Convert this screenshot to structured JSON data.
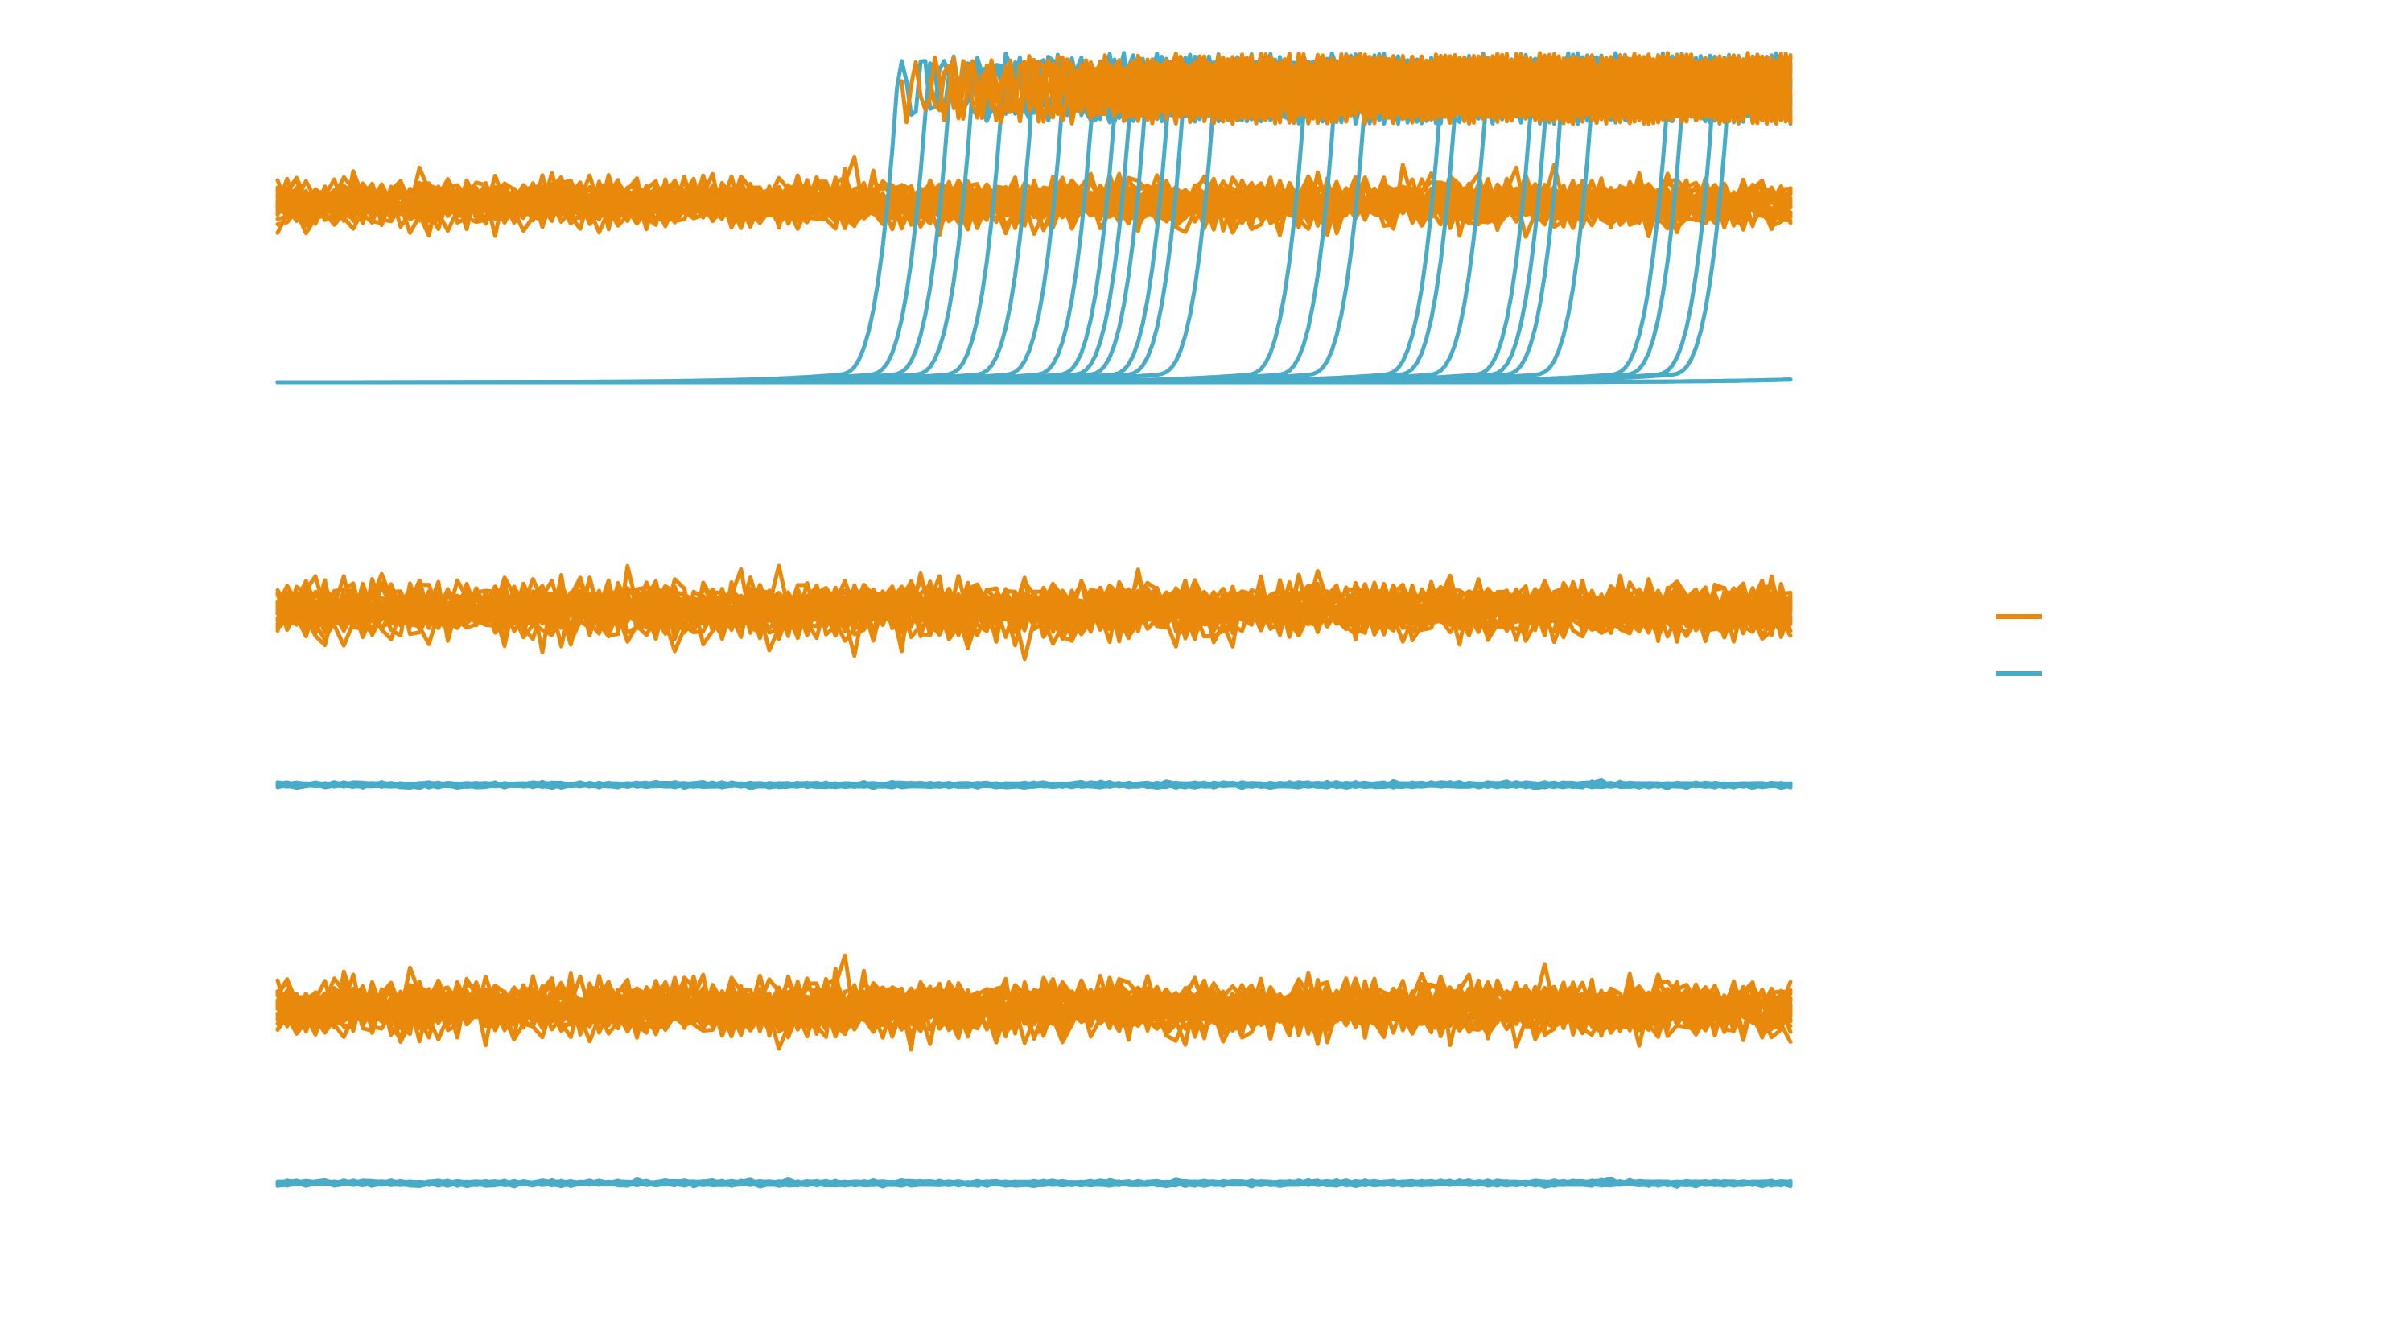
{
  "colors": {
    "series_a": "#E8890C",
    "series_b": "#48ABC8",
    "background": "#FFFFFF"
  },
  "chart_data": [
    {
      "panel": "top",
      "type": "line",
      "x_range": [
        0,
        1000
      ],
      "y_range": [
        0,
        1
      ],
      "grid": false,
      "series": [
        {
          "color_key": "series_a",
          "runs": 30,
          "base_level": 0.5,
          "noise": 0.03,
          "transitions": false
        },
        {
          "color_key": "series_b",
          "runs": 30,
          "base_level": 0.0,
          "upper_level": 0.82,
          "upper_oscillation": 0.1,
          "transition_x": [
            410,
            430,
            445,
            460,
            480,
            500,
            520,
            540,
            555,
            565,
            575,
            590,
            600,
            620,
            680,
            700,
            720,
            770,
            780,
            800,
            830,
            840,
            850,
            870,
            920,
            930,
            950,
            960,
            1100,
            1100
          ]
        },
        {
          "color_key": "series_a",
          "runs": 30,
          "base_level": 0.82,
          "upper_oscillation": 0.1,
          "follows_series_b": true
        }
      ]
    },
    {
      "panel": "middle",
      "type": "line",
      "x_range": [
        0,
        1000
      ],
      "y_range": [
        0,
        1
      ],
      "grid": false,
      "series": [
        {
          "color_key": "series_a",
          "runs": 30,
          "base_level": 0.5,
          "noise": 0.035
        },
        {
          "color_key": "series_b",
          "runs": 30,
          "base_level": 0.0,
          "noise": 0.003
        }
      ]
    },
    {
      "panel": "bottom",
      "type": "line",
      "x_range": [
        0,
        1000
      ],
      "y_range": [
        0,
        1
      ],
      "grid": false,
      "series": [
        {
          "color_key": "series_a",
          "runs": 30,
          "base_level": 0.5,
          "noise": 0.035
        },
        {
          "color_key": "series_b",
          "runs": 30,
          "base_level": 0.0,
          "noise": 0.003
        }
      ]
    }
  ],
  "legend": {
    "placement": "right",
    "entries": [
      {
        "color_key": "series_a",
        "label": ""
      },
      {
        "color_key": "series_b",
        "label": ""
      }
    ]
  }
}
